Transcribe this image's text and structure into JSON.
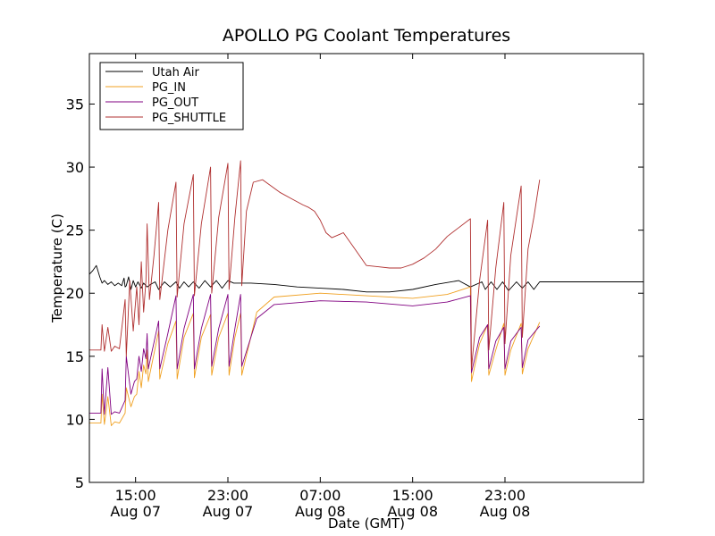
{
  "chart_data": {
    "type": "line",
    "title": "APOLLO PG Coolant Temperatures",
    "xlabel": "Date (GMT)",
    "ylabel": "Temperature (C)",
    "xlim": [
      11.0,
      59.0
    ],
    "ylim": [
      5,
      39
    ],
    "yticks": [
      5,
      10,
      15,
      20,
      25,
      30,
      35
    ],
    "xticks": [
      {
        "x": 15.0,
        "line1": "15:00",
        "line2": "Aug 07"
      },
      {
        "x": 23.0,
        "line1": "23:00",
        "line2": "Aug 07"
      },
      {
        "x": 31.0,
        "line1": "07:00",
        "line2": "Aug 08"
      },
      {
        "x": 39.0,
        "line1": "15:00",
        "line2": "Aug 08"
      },
      {
        "x": 47.0,
        "line1": "23:00",
        "line2": "Aug 08"
      }
    ],
    "legend_position": "top-left",
    "series": [
      {
        "name": "Utah Air",
        "color": "#000000",
        "x": [
          11.0,
          11.3,
          11.6,
          11.9,
          12.1,
          12.3,
          12.6,
          12.9,
          13.2,
          13.5,
          13.8,
          14.0,
          14.1,
          14.2,
          14.4,
          14.6,
          14.8,
          15.0,
          15.2,
          15.5,
          15.7,
          16.0,
          16.3,
          16.7,
          17.0,
          17.5,
          18.0,
          18.5,
          18.8,
          19.2,
          19.6,
          20.0,
          20.5,
          21.0,
          21.5,
          22.0,
          22.5,
          23.0,
          23.5,
          24.0,
          25.0,
          27.0,
          29.0,
          31.0,
          33.0,
          35.0,
          37.0,
          39.0,
          41.0,
          43.0,
          44.0,
          45.0,
          45.3,
          45.8,
          46.3,
          46.8,
          47.3,
          48.0,
          48.5,
          49.0,
          49.5,
          50.0,
          59.0
        ],
        "y": [
          21.5,
          21.8,
          22.2,
          21.3,
          20.8,
          21.0,
          20.7,
          20.9,
          20.6,
          20.8,
          20.6,
          21.2,
          20.5,
          20.6,
          21.3,
          20.3,
          21.0,
          20.5,
          20.9,
          20.4,
          20.8,
          20.5,
          20.7,
          20.9,
          20.3,
          20.9,
          20.5,
          20.9,
          20.4,
          20.9,
          20.5,
          20.9,
          20.4,
          21.0,
          20.5,
          21.0,
          20.4,
          21.0,
          20.8,
          20.8,
          20.8,
          20.7,
          20.5,
          20.4,
          20.3,
          20.1,
          20.1,
          20.3,
          20.7,
          21.0,
          20.5,
          20.9,
          20.3,
          20.9,
          20.3,
          20.9,
          20.2,
          20.9,
          20.4,
          20.9,
          20.3,
          20.9,
          20.9
        ]
      },
      {
        "name": "PG_IN",
        "color": "#f0a020",
        "x": [
          11.0,
          12.0,
          12.1,
          12.3,
          12.6,
          12.9,
          13.2,
          13.6,
          14.1,
          14.2,
          14.6,
          14.9,
          15.1,
          15.3,
          15.5,
          15.7,
          15.9,
          16.0,
          16.1,
          17.0,
          17.1,
          17.8,
          18.5,
          18.6,
          19.2,
          20.0,
          20.1,
          20.7,
          21.5,
          21.6,
          22.2,
          23.0,
          23.1,
          23.6,
          24.1,
          24.2,
          25.5,
          27.0,
          31.0,
          35.0,
          39.0,
          42.0,
          44.0,
          44.1,
          44.8,
          45.5,
          45.6,
          46.2,
          46.9,
          47.0,
          47.5,
          48.4,
          48.5,
          49.0,
          50.0
        ],
        "y": [
          9.7,
          9.7,
          12.0,
          9.6,
          11.8,
          9.5,
          9.8,
          9.7,
          10.5,
          12.5,
          11.0,
          11.8,
          12.0,
          13.8,
          12.5,
          14.3,
          13.6,
          15.5,
          13.0,
          17.0,
          13.2,
          16.0,
          17.8,
          13.2,
          16.5,
          18.4,
          13.3,
          16.5,
          18.3,
          13.5,
          16.5,
          18.4,
          13.5,
          16.5,
          18.4,
          13.5,
          18.5,
          19.7,
          20.0,
          19.8,
          19.6,
          19.9,
          20.5,
          13.0,
          16.0,
          17.5,
          13.5,
          15.5,
          17.6,
          13.5,
          15.5,
          17.6,
          13.6,
          15.6,
          17.7
        ]
      },
      {
        "name": "PG_OUT",
        "color": "#800080",
        "x": [
          11.0,
          12.0,
          12.1,
          12.3,
          12.6,
          12.9,
          13.2,
          13.6,
          14.1,
          14.2,
          14.6,
          14.9,
          15.1,
          15.3,
          15.5,
          15.7,
          15.9,
          16.0,
          16.1,
          17.0,
          17.1,
          17.8,
          18.5,
          18.6,
          19.2,
          20.0,
          20.1,
          20.7,
          21.5,
          21.6,
          22.2,
          23.0,
          23.1,
          23.6,
          24.1,
          24.2,
          25.5,
          27.0,
          31.0,
          35.0,
          39.0,
          42.0,
          44.0,
          44.1,
          44.8,
          45.5,
          45.6,
          46.2,
          46.9,
          47.0,
          47.5,
          48.4,
          48.5,
          49.0,
          50.0
        ],
        "y": [
          10.5,
          10.5,
          14.0,
          10.4,
          14.1,
          10.4,
          10.6,
          10.5,
          11.5,
          15.0,
          12.0,
          13.0,
          13.2,
          15.0,
          13.8,
          15.6,
          14.8,
          16.8,
          14.0,
          17.8,
          14.0,
          16.8,
          19.8,
          14.0,
          17.2,
          19.9,
          14.0,
          17.2,
          19.9,
          14.2,
          17.2,
          19.9,
          14.2,
          17.2,
          19.9,
          14.2,
          18.0,
          19.1,
          19.4,
          19.3,
          19.0,
          19.3,
          19.8,
          13.7,
          16.5,
          17.5,
          14.0,
          16.2,
          17.3,
          14.0,
          16.2,
          17.3,
          14.1,
          16.3,
          17.4
        ]
      },
      {
        "name": "PG_SHUTTLE",
        "color": "#b03030",
        "x": [
          11.0,
          12.0,
          12.1,
          12.3,
          12.6,
          12.9,
          13.2,
          13.6,
          14.1,
          14.2,
          14.5,
          14.8,
          15.1,
          15.3,
          15.5,
          15.7,
          15.9,
          16.0,
          16.2,
          16.6,
          17.0,
          17.1,
          17.8,
          18.5,
          18.6,
          19.2,
          20.0,
          20.1,
          20.7,
          21.5,
          21.6,
          22.2,
          23.0,
          23.1,
          23.6,
          24.1,
          24.2,
          24.6,
          25.2,
          26.0,
          27.5,
          28.5,
          29.5,
          30.0,
          30.5,
          31.0,
          31.5,
          32.0,
          33.0,
          34.0,
          35.0,
          36.0,
          37.0,
          38.0,
          39.0,
          40.0,
          41.0,
          42.0,
          43.0,
          44.0,
          44.1,
          44.8,
          45.5,
          45.6,
          46.2,
          46.9,
          47.0,
          47.5,
          48.4,
          48.5,
          49.0,
          49.5,
          50.0
        ],
        "y": [
          15.5,
          15.5,
          17.5,
          15.4,
          17.3,
          15.4,
          15.8,
          15.6,
          19.5,
          15.0,
          21.0,
          17.0,
          20.5,
          17.5,
          22.5,
          18.5,
          21.0,
          25.5,
          19.5,
          23.0,
          27.2,
          19.5,
          25.0,
          28.8,
          19.7,
          25.5,
          29.4,
          19.8,
          25.5,
          30.0,
          20.0,
          26.0,
          30.3,
          20.3,
          26.0,
          30.5,
          20.6,
          26.5,
          28.8,
          29.0,
          28.0,
          27.5,
          27.0,
          26.8,
          26.5,
          25.8,
          24.8,
          24.4,
          24.8,
          23.5,
          22.2,
          22.1,
          22.0,
          22.0,
          22.3,
          22.8,
          23.5,
          24.5,
          25.2,
          25.9,
          14.0,
          21.0,
          25.8,
          15.5,
          22.0,
          27.2,
          16.0,
          23.0,
          28.5,
          16.5,
          23.5,
          26.0,
          29.0
        ]
      }
    ]
  }
}
